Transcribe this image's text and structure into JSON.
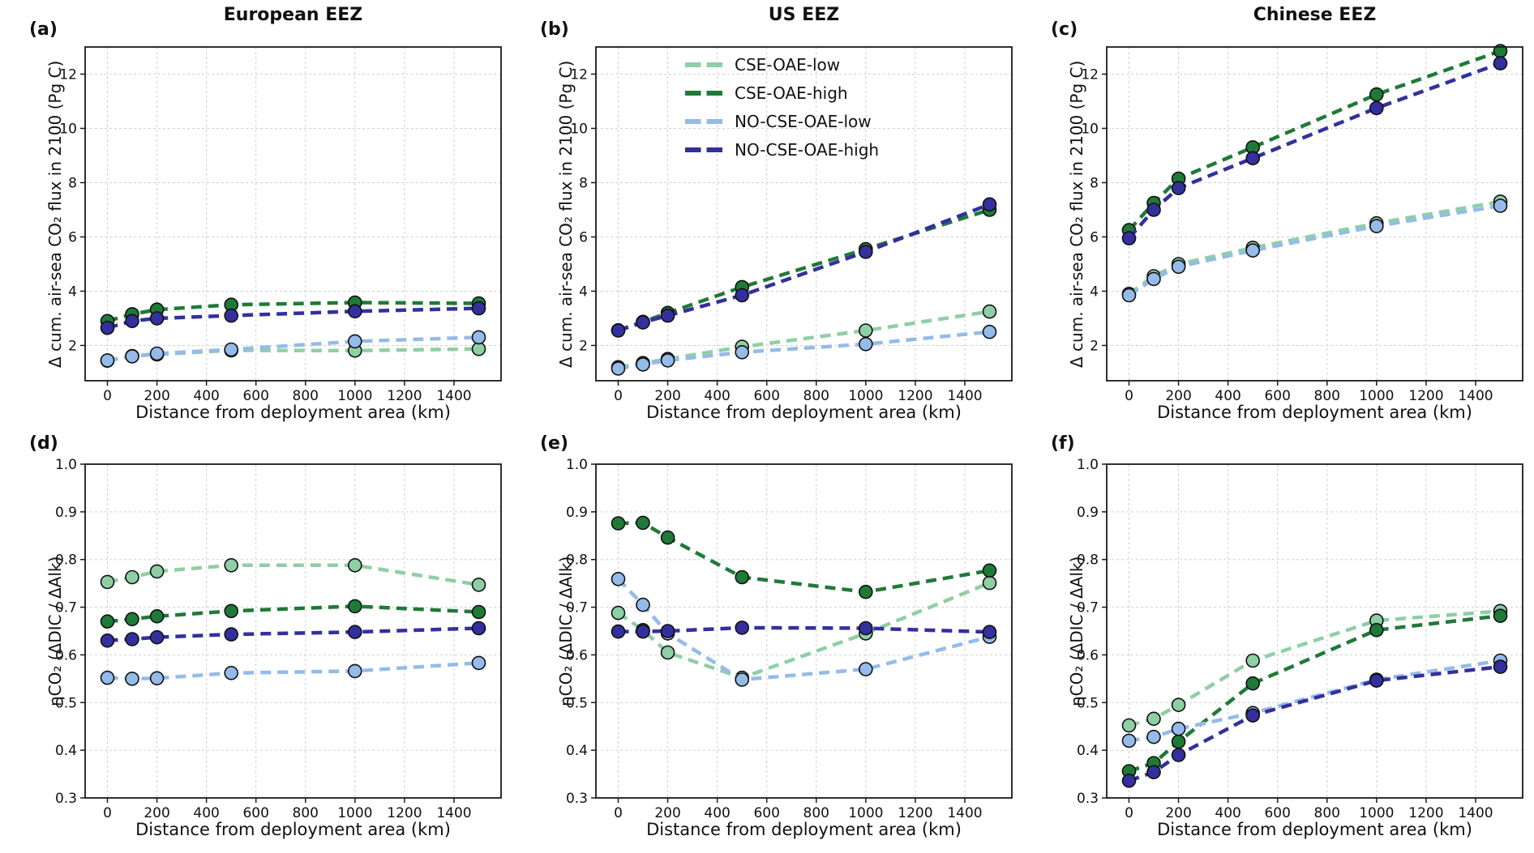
{
  "figure": {
    "xlabel": "Distance from deployment area (km)",
    "ylabel_top": "Δ cum. air-sea CO₂ flux in 2100 (Pg C)",
    "ylabel_bottom": "ηCO₂ (ΔDIC / ΔAlk)",
    "column_titles": [
      "European EEZ",
      "US EEZ",
      "Chinese EEZ"
    ],
    "panel_letters": [
      "(a)",
      "(b)",
      "(c)",
      "(d)",
      "(e)",
      "(f)"
    ]
  },
  "colors": {
    "cse_oae_low": "#8ecfa4",
    "cse_oae_high": "#1f7a38",
    "no_cse_oae_low": "#94bbe9",
    "no_cse_oae_high": "#33309d",
    "grid": "#cfcfcf",
    "axis": "#1a1a1a"
  },
  "legend": {
    "entries": [
      {
        "label": "CSE-OAE-low",
        "color": "#8ecfa4"
      },
      {
        "label": "CSE-OAE-high",
        "color": "#1f7a38"
      },
      {
        "label": "NO-CSE-OAE-low",
        "color": "#94bbe9"
      },
      {
        "label": "NO-CSE-OAE-high",
        "color": "#33309d"
      }
    ]
  },
  "chart_data": [
    {
      "type": "line",
      "panel": "(a)",
      "title": "European EEZ",
      "row": "top",
      "legend": false,
      "xlabel": "Distance from deployment area (km)",
      "ylabel": "Δ cum. air-sea CO₂ flux in 2100 (Pg C)",
      "x": [
        0,
        100,
        200,
        500,
        1000,
        1500
      ],
      "xticks": [
        0,
        200,
        400,
        600,
        800,
        1000,
        1200,
        1400
      ],
      "xlim": [
        -90,
        1590
      ],
      "ylim": [
        0.7,
        13.0
      ],
      "yticks": [
        2,
        4,
        6,
        8,
        10,
        12
      ],
      "ytick_decimals": 0,
      "series": [
        {
          "name": "CSE-OAE-low",
          "color": "#8ecfa4",
          "values": [
            1.44,
            1.61,
            1.67,
            1.82,
            1.81,
            1.87
          ]
        },
        {
          "name": "CSE-OAE-high",
          "color": "#1f7a38",
          "values": [
            2.9,
            3.15,
            3.32,
            3.5,
            3.58,
            3.55
          ]
        },
        {
          "name": "NO-CSE-OAE-low",
          "color": "#94bbe9",
          "values": [
            1.45,
            1.6,
            1.7,
            1.85,
            2.15,
            2.3
          ]
        },
        {
          "name": "NO-CSE-OAE-high",
          "color": "#33309d",
          "values": [
            2.65,
            2.9,
            3.0,
            3.1,
            3.26,
            3.37
          ]
        }
      ]
    },
    {
      "type": "line",
      "panel": "(b)",
      "title": "US EEZ",
      "row": "top",
      "legend": true,
      "xlabel": "Distance from deployment area (km)",
      "ylabel": "Δ cum. air-sea CO₂ flux in 2100 (Pg C)",
      "x": [
        0,
        100,
        200,
        500,
        1000,
        1500
      ],
      "xticks": [
        0,
        200,
        400,
        600,
        800,
        1000,
        1200,
        1400
      ],
      "xlim": [
        -90,
        1590
      ],
      "ylim": [
        0.7,
        13.0
      ],
      "yticks": [
        2,
        4,
        6,
        8,
        10,
        12
      ],
      "ytick_decimals": 0,
      "series": [
        {
          "name": "CSE-OAE-low",
          "color": "#8ecfa4",
          "values": [
            1.2,
            1.35,
            1.5,
            1.95,
            2.55,
            3.25
          ]
        },
        {
          "name": "CSE-OAE-high",
          "color": "#1f7a38",
          "values": [
            2.56,
            2.87,
            3.2,
            4.15,
            5.55,
            7.0
          ]
        },
        {
          "name": "NO-CSE-OAE-low",
          "color": "#94bbe9",
          "values": [
            1.15,
            1.3,
            1.45,
            1.75,
            2.05,
            2.5
          ]
        },
        {
          "name": "NO-CSE-OAE-high",
          "color": "#33309d",
          "values": [
            2.55,
            2.85,
            3.1,
            3.85,
            5.45,
            7.2
          ]
        }
      ]
    },
    {
      "type": "line",
      "panel": "(c)",
      "title": "Chinese EEZ",
      "row": "top",
      "legend": false,
      "xlabel": "Distance from deployment area (km)",
      "ylabel": "Δ cum. air-sea CO₂ flux in 2100 (Pg C)",
      "x": [
        0,
        100,
        200,
        500,
        1000,
        1500
      ],
      "xticks": [
        0,
        200,
        400,
        600,
        800,
        1000,
        1200,
        1400
      ],
      "xlim": [
        -90,
        1590
      ],
      "ylim": [
        0.7,
        13.0
      ],
      "yticks": [
        2,
        4,
        6,
        8,
        10,
        12
      ],
      "ytick_decimals": 0,
      "series": [
        {
          "name": "CSE-OAE-low",
          "color": "#8ecfa4",
          "values": [
            3.9,
            4.55,
            5.0,
            5.6,
            6.5,
            7.3
          ]
        },
        {
          "name": "CSE-OAE-high",
          "color": "#1f7a38",
          "values": [
            6.25,
            7.25,
            8.15,
            9.3,
            11.25,
            12.85
          ]
        },
        {
          "name": "NO-CSE-OAE-low",
          "color": "#94bbe9",
          "values": [
            3.85,
            4.45,
            4.9,
            5.5,
            6.4,
            7.15
          ]
        },
        {
          "name": "NO-CSE-OAE-high",
          "color": "#33309d",
          "values": [
            5.95,
            7.0,
            7.8,
            8.9,
            10.75,
            12.4
          ]
        }
      ]
    },
    {
      "type": "line",
      "panel": "(d)",
      "title": "",
      "row": "bottom",
      "legend": false,
      "xlabel": "Distance from deployment area (km)",
      "ylabel": "ηCO₂ (ΔDIC / ΔAlk)",
      "x": [
        0,
        100,
        200,
        500,
        1000,
        1500
      ],
      "xticks": [
        0,
        200,
        400,
        600,
        800,
        1000,
        1200,
        1400
      ],
      "xlim": [
        -90,
        1590
      ],
      "ylim": [
        0.3,
        1.0
      ],
      "yticks": [
        0.3,
        0.4,
        0.5,
        0.6,
        0.7,
        0.8,
        0.9,
        1.0
      ],
      "ytick_decimals": 1,
      "series": [
        {
          "name": "CSE-OAE-low",
          "color": "#8ecfa4",
          "values": [
            0.753,
            0.763,
            0.775,
            0.788,
            0.788,
            0.747
          ]
        },
        {
          "name": "CSE-OAE-high",
          "color": "#1f7a38",
          "values": [
            0.67,
            0.675,
            0.681,
            0.692,
            0.702,
            0.69
          ]
        },
        {
          "name": "NO-CSE-OAE-low",
          "color": "#94bbe9",
          "values": [
            0.552,
            0.55,
            0.551,
            0.562,
            0.566,
            0.583
          ]
        },
        {
          "name": "NO-CSE-OAE-high",
          "color": "#33309d",
          "values": [
            0.63,
            0.633,
            0.637,
            0.643,
            0.648,
            0.656
          ]
        }
      ]
    },
    {
      "type": "line",
      "panel": "(e)",
      "title": "",
      "row": "bottom",
      "legend": false,
      "xlabel": "Distance from deployment area (km)",
      "ylabel": "ηCO₂ (ΔDIC / ΔAlk)",
      "x": [
        0,
        100,
        200,
        500,
        1000,
        1500
      ],
      "xticks": [
        0,
        200,
        400,
        600,
        800,
        1000,
        1200,
        1400
      ],
      "xlim": [
        -90,
        1590
      ],
      "ylim": [
        0.3,
        1.0
      ],
      "yticks": [
        0.3,
        0.4,
        0.5,
        0.6,
        0.7,
        0.8,
        0.9,
        1.0
      ],
      "ytick_decimals": 1,
      "series": [
        {
          "name": "CSE-OAE-low",
          "color": "#8ecfa4",
          "values": [
            0.688,
            0.652,
            0.605,
            0.552,
            0.645,
            0.751
          ]
        },
        {
          "name": "CSE-OAE-high",
          "color": "#1f7a38",
          "values": [
            0.876,
            0.877,
            0.846,
            0.763,
            0.732,
            0.777
          ]
        },
        {
          "name": "NO-CSE-OAE-low",
          "color": "#94bbe9",
          "values": [
            0.759,
            0.705,
            0.645,
            0.548,
            0.57,
            0.638
          ]
        },
        {
          "name": "NO-CSE-OAE-high",
          "color": "#33309d",
          "values": [
            0.649,
            0.649,
            0.65,
            0.657,
            0.656,
            0.648
          ]
        }
      ]
    },
    {
      "type": "line",
      "panel": "(f)",
      "title": "",
      "row": "bottom",
      "legend": false,
      "xlabel": "Distance from deployment area (km)",
      "ylabel": "ηCO₂ (ΔDIC / ΔAlk)",
      "x": [
        0,
        100,
        200,
        500,
        1000,
        1500
      ],
      "xticks": [
        0,
        200,
        400,
        600,
        800,
        1000,
        1200,
        1400
      ],
      "xlim": [
        -90,
        1590
      ],
      "ylim": [
        0.3,
        1.0
      ],
      "yticks": [
        0.3,
        0.4,
        0.5,
        0.6,
        0.7,
        0.8,
        0.9,
        1.0
      ],
      "ytick_decimals": 1,
      "series": [
        {
          "name": "CSE-OAE-low",
          "color": "#8ecfa4",
          "values": [
            0.452,
            0.466,
            0.495,
            0.588,
            0.672,
            0.692
          ]
        },
        {
          "name": "CSE-OAE-high",
          "color": "#1f7a38",
          "values": [
            0.356,
            0.373,
            0.418,
            0.54,
            0.652,
            0.682
          ]
        },
        {
          "name": "NO-CSE-OAE-low",
          "color": "#94bbe9",
          "values": [
            0.42,
            0.428,
            0.445,
            0.478,
            0.548,
            0.588
          ]
        },
        {
          "name": "NO-CSE-OAE-high",
          "color": "#33309d",
          "values": [
            0.336,
            0.354,
            0.39,
            0.473,
            0.546,
            0.575
          ]
        }
      ]
    }
  ]
}
